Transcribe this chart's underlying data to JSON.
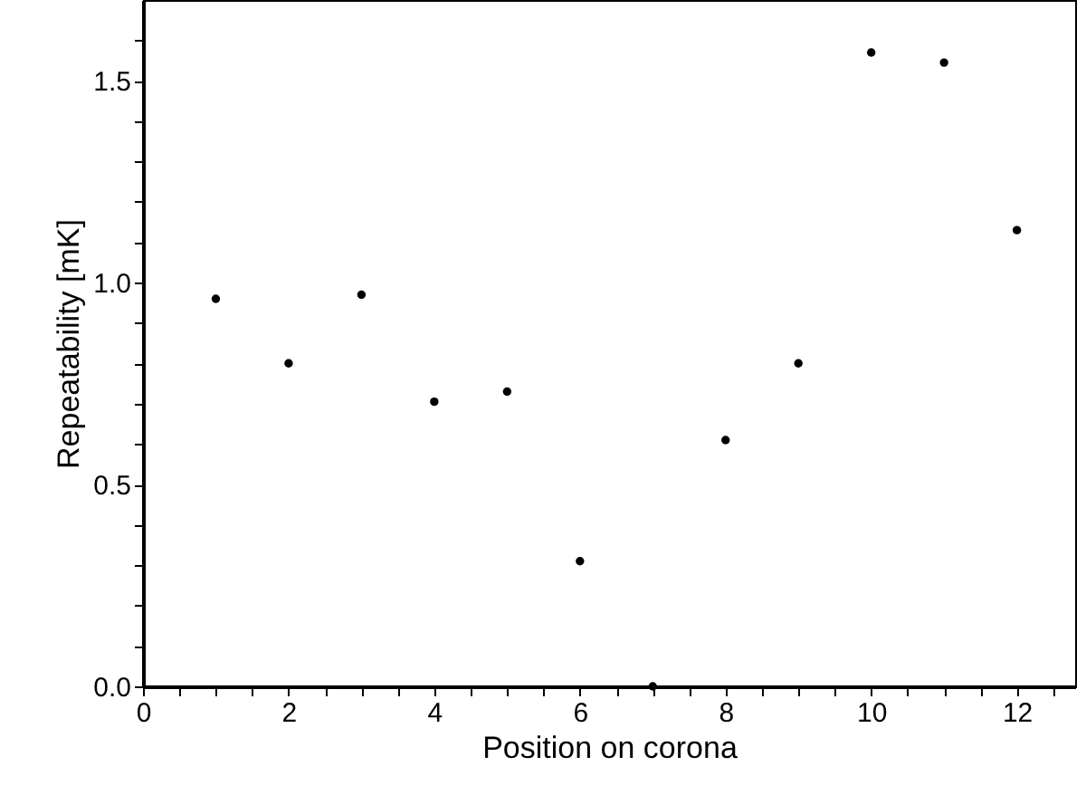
{
  "chart_data": {
    "type": "scatter",
    "xlabel": "Position on corona",
    "ylabel": "Repeatability [mK]",
    "x": [
      1,
      2,
      3,
      4,
      5,
      6,
      7,
      8,
      9,
      10,
      11,
      12
    ],
    "series": [
      {
        "color": "#000000",
        "values": [
          0.96,
          0.8,
          0.97,
          0.705,
          0.73,
          0.31,
          0.0,
          0.61,
          0.8,
          1.57,
          1.545,
          1.13
        ]
      }
    ],
    "xlim": [
      0,
      12.8
    ],
    "ylim": [
      0,
      1.7
    ],
    "xticks": [
      0,
      {
        "value": 0.5,
        "label": null
      },
      2,
      {
        "value": 1.5,
        "label": null
      },
      4,
      6,
      8,
      10,
      12,
      {
        "value": 1,
        "label": null
      },
      {
        "value": 2.5,
        "label": null
      },
      {
        "value": 3,
        "label": null
      },
      {
        "value": 3.5,
        "label": null
      },
      {
        "value": 4.5,
        "label": null
      },
      {
        "value": 5,
        "label": null
      },
      {
        "value": 5.5,
        "label": null
      },
      {
        "value": 6.5,
        "label": null
      },
      {
        "value": 7,
        "label": null
      },
      {
        "value": 7.5,
        "label": null
      },
      {
        "value": 8.5,
        "label": null
      },
      {
        "value": 9,
        "label": null
      },
      {
        "value": 9.5,
        "label": null
      },
      {
        "value": 10.5,
        "label": null
      },
      {
        "value": 11,
        "label": null
      },
      {
        "value": 11.5,
        "label": null
      },
      {
        "value": 12.5,
        "label": null
      }
    ],
    "yticks": [
      {
        "value": 0,
        "label": "0.0"
      },
      {
        "value": 0.5,
        "label": "0.5"
      },
      {
        "value": 1,
        "label": "1.0"
      },
      {
        "value": 1.5,
        "label": "1.5"
      },
      {
        "value": 0.1,
        "label": null
      },
      {
        "value": 0.2,
        "label": null
      },
      {
        "value": 0.3,
        "label": null
      },
      {
        "value": 0.4,
        "label": null
      },
      {
        "value": 0.6,
        "label": null
      },
      {
        "value": 0.7,
        "label": null
      },
      {
        "value": 0.8,
        "label": null
      },
      {
        "value": 0.9,
        "label": null
      },
      {
        "value": 1.1,
        "label": null
      },
      {
        "value": 1.2,
        "label": null
      },
      {
        "value": 1.3,
        "label": null
      },
      {
        "value": 1.4,
        "label": null
      },
      {
        "value": 1.6,
        "label": null
      }
    ],
    "grid": false
  }
}
